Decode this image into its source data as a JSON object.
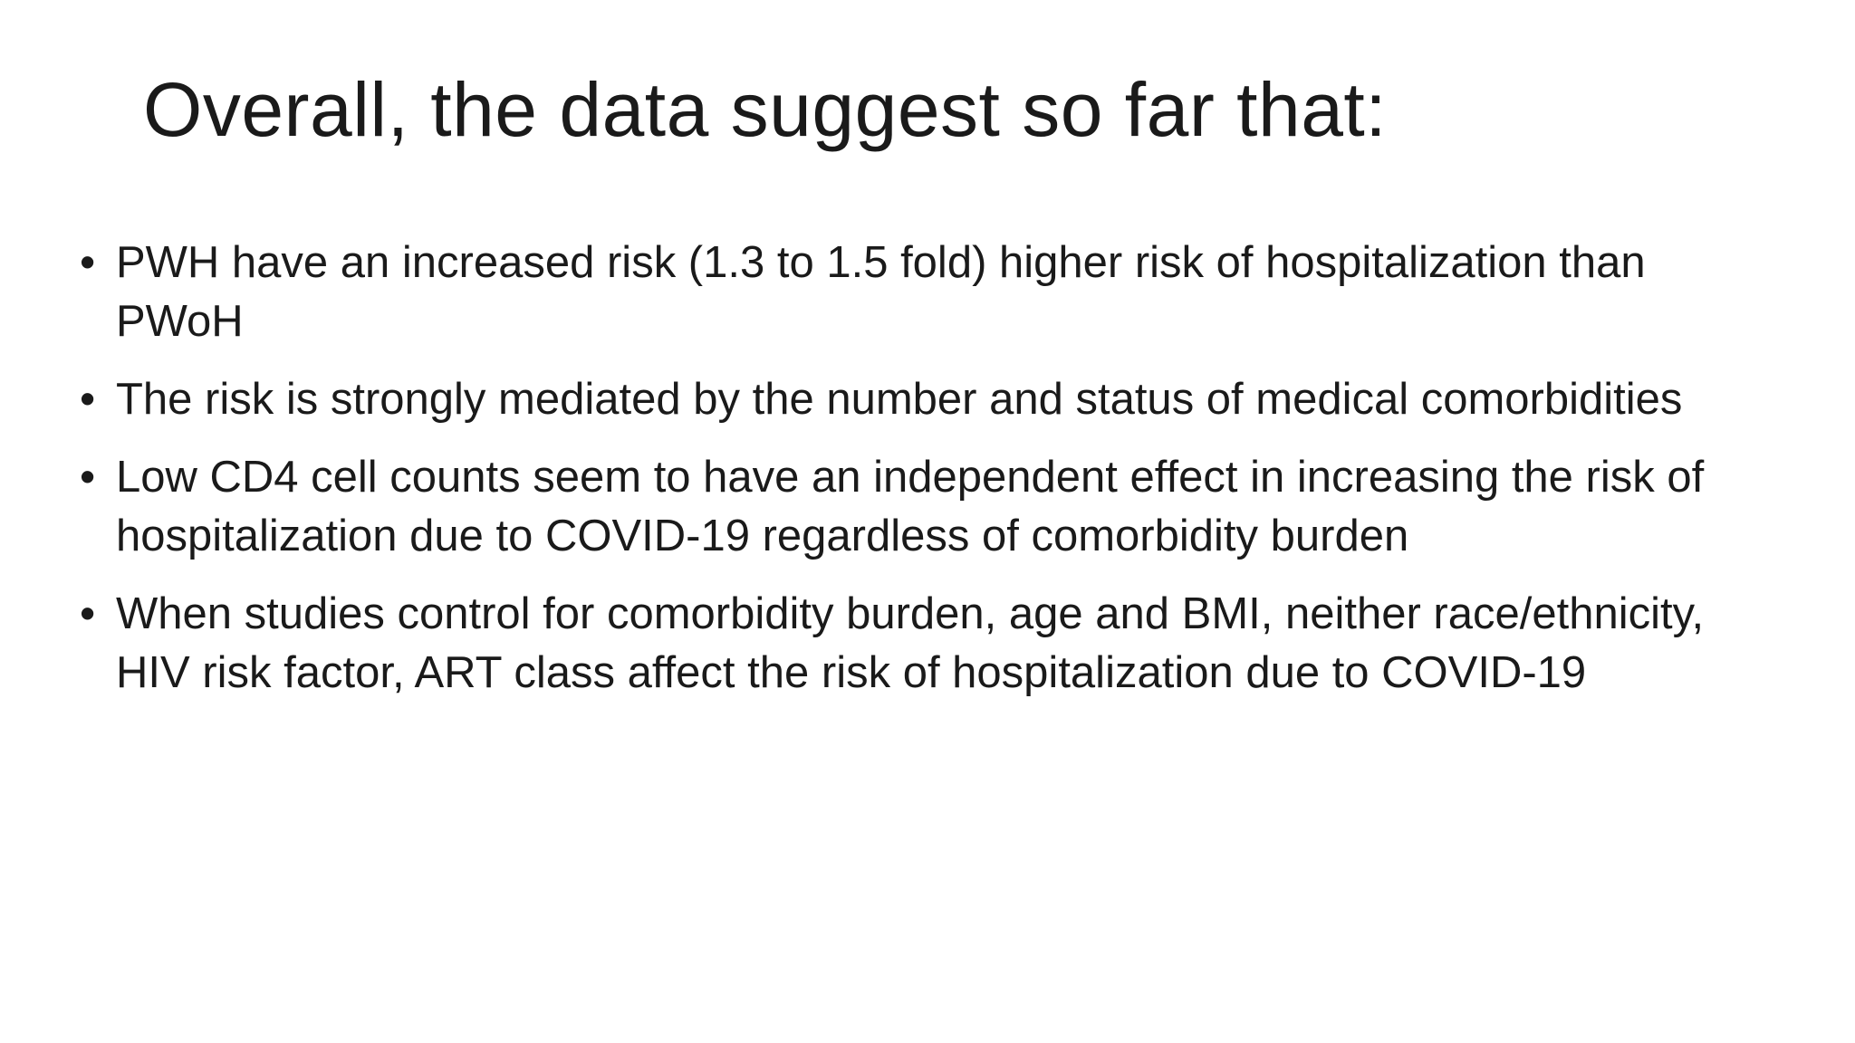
{
  "slide": {
    "title": "Overall, the data suggest so far that:",
    "bullet_marker": "•",
    "bullets": [
      {
        "text": "PWH have an increased risk (1.3 to 1.5 fold) higher risk of hospitalization than PWoH"
      },
      {
        "text": "The risk is strongly mediated by the number and status of medical comorbidities"
      },
      {
        "text": "Low CD4 cell counts seem to have an independent effect in increasing the risk of hospitalization due to COVID-19 regardless of comorbidity burden"
      },
      {
        "text": "When studies control for comorbidity burden, age and BMI, neither race/ethnicity, HIV risk factor, ART class affect the risk of hospitalization due to COVID-19"
      }
    ]
  }
}
